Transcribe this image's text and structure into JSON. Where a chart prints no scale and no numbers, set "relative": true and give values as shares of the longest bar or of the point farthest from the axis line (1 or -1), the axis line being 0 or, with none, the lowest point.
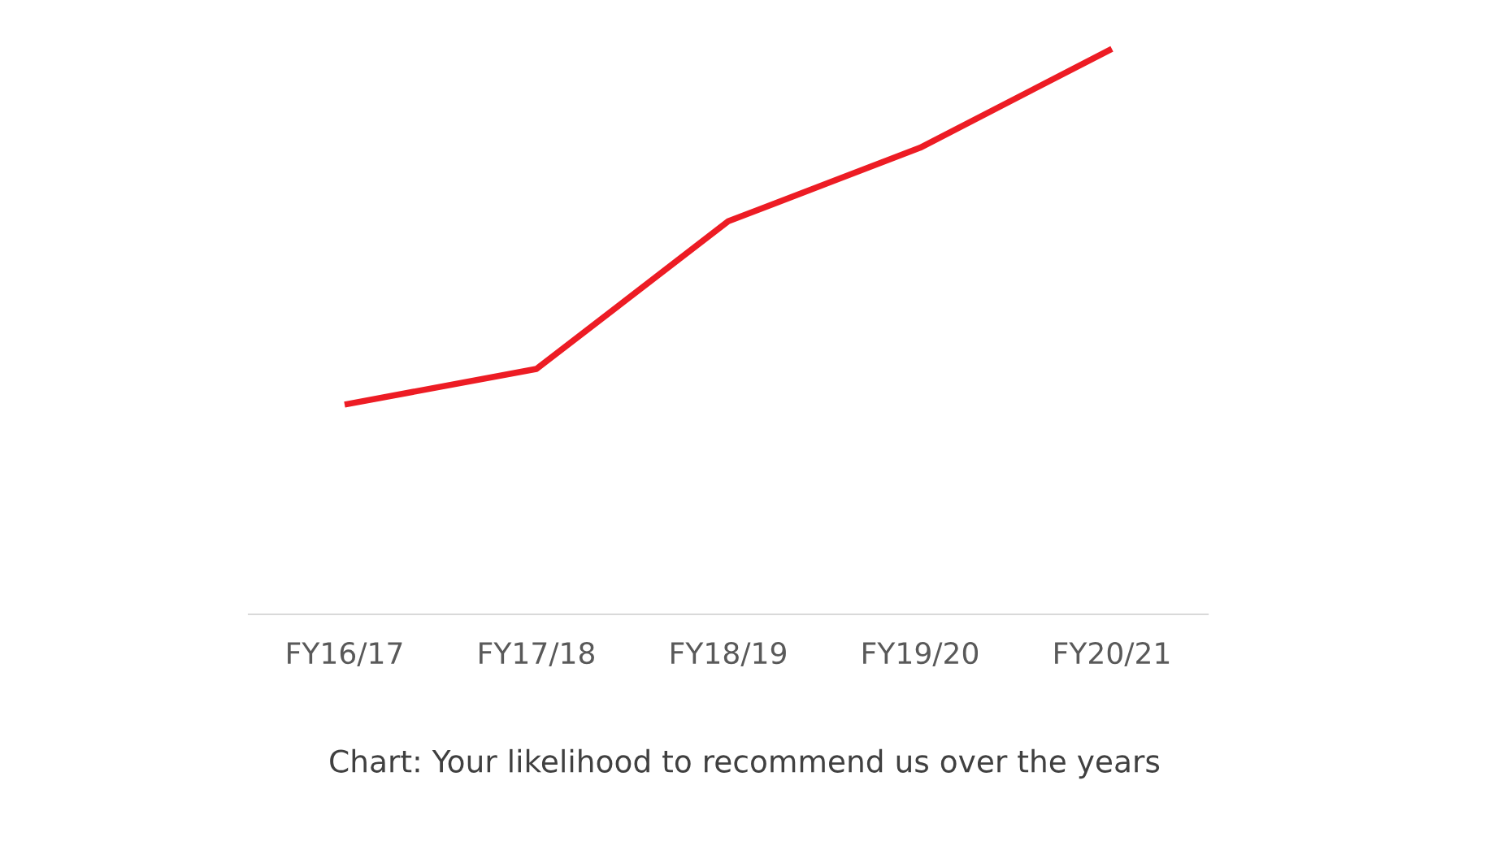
{
  "chart_data": {
    "type": "line",
    "relative": true,
    "categories": [
      "FY16/17",
      "FY17/18",
      "FY18/19",
      "FY19/20",
      "FY20/21"
    ],
    "series": [
      {
        "color": "#ed1c24",
        "values": [
          0.371,
          0.434,
          0.695,
          0.825,
          1.0
        ]
      }
    ],
    "annotations": [
      "Chart: Your likelihood to recommend us over the years"
    ],
    "grid": false,
    "marker": "none",
    "line_style": "solid"
  }
}
